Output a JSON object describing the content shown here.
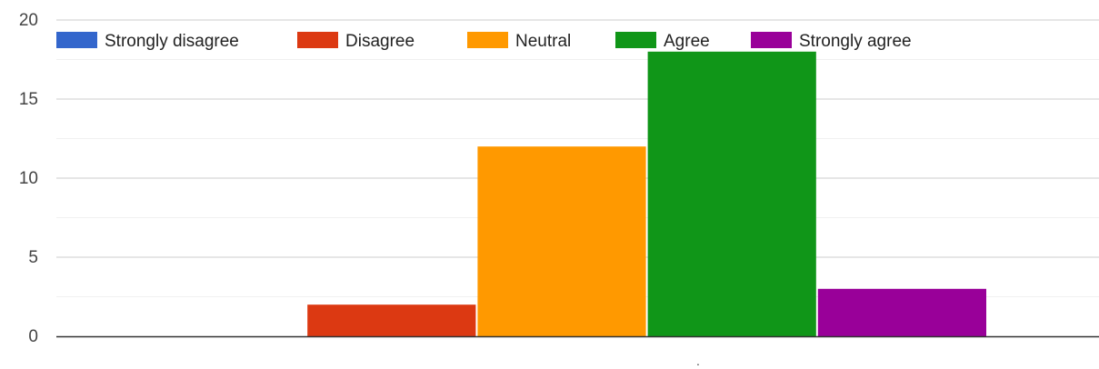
{
  "chart_data": {
    "type": "bar",
    "categories": [
      "."
    ],
    "series": [
      {
        "name": "Strongly disagree",
        "values": [
          0
        ],
        "color": "#3366cc"
      },
      {
        "name": "Disagree",
        "values": [
          2
        ],
        "color": "#dc3912"
      },
      {
        "name": "Neutral",
        "values": [
          12
        ],
        "color": "#ff9900"
      },
      {
        "name": "Agree",
        "values": [
          18
        ],
        "color": "#109618"
      },
      {
        "name": "Strongly agree",
        "values": [
          3
        ],
        "color": "#990099"
      }
    ],
    "ylim": [
      0,
      20
    ],
    "yticks": [
      0,
      5,
      10,
      15,
      20
    ],
    "grid": true,
    "legend_position": "top"
  }
}
